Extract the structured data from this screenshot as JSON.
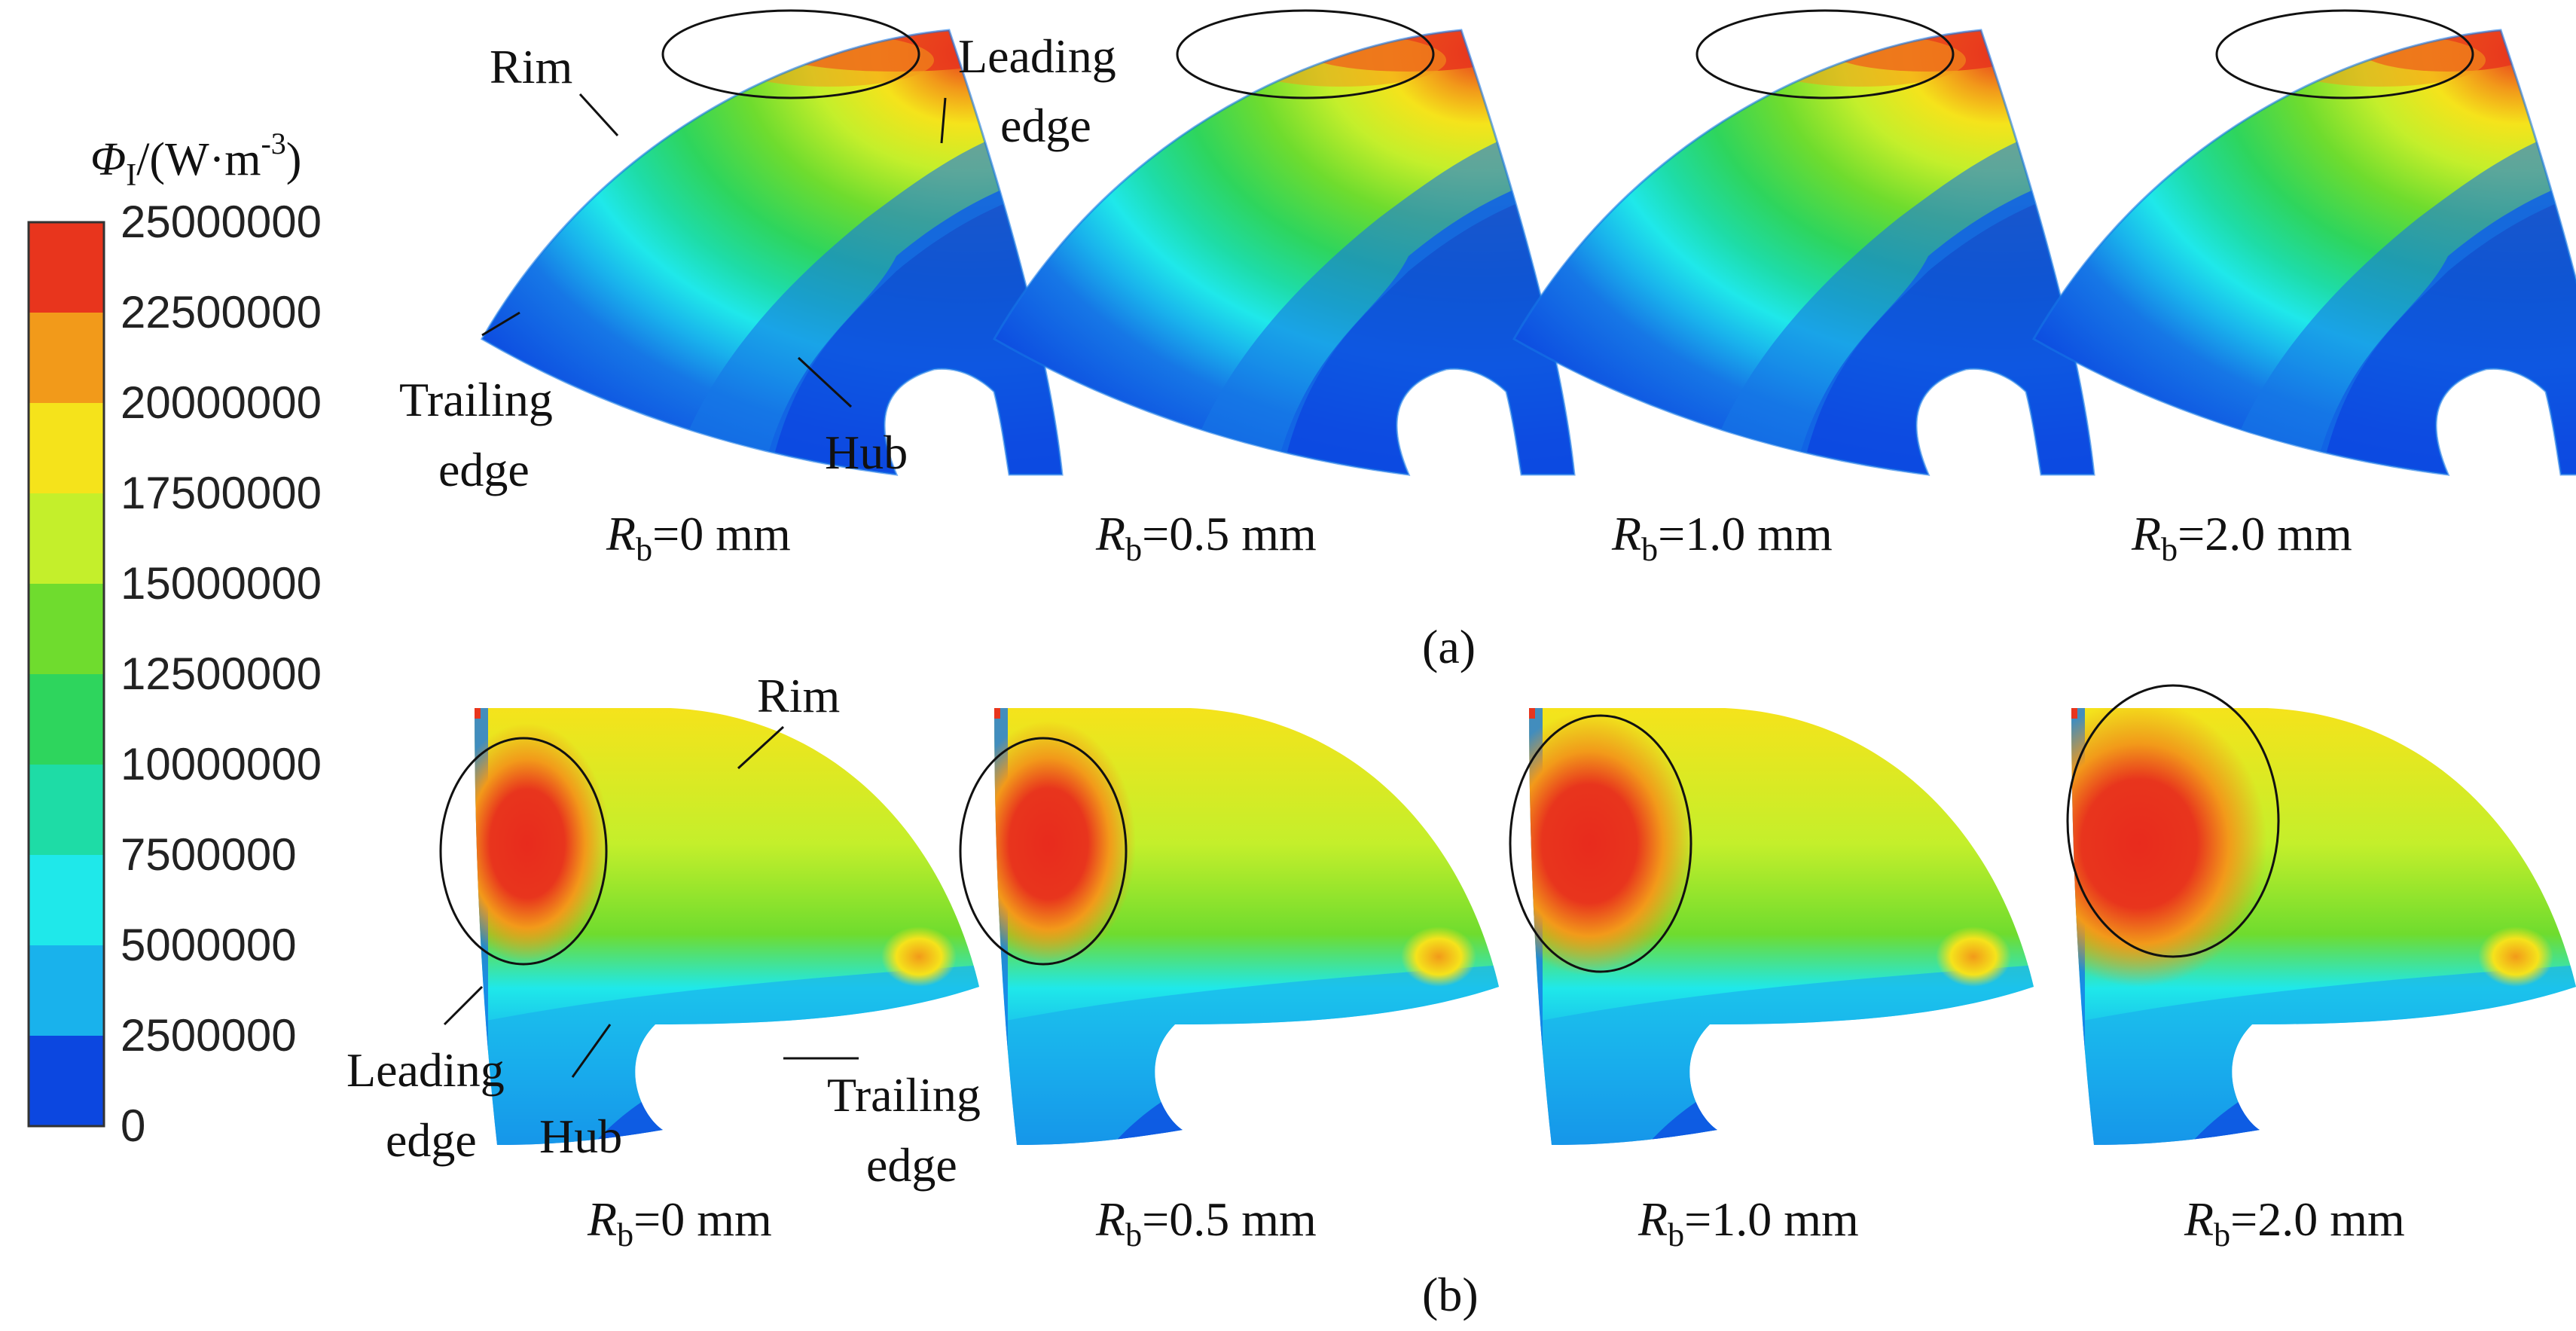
{
  "colorbar": {
    "title_symbol": "Φ",
    "title_subscript": "I",
    "title_units": "/(W·m",
    "title_exponent": "-3",
    "title_close": ")",
    "ticks": [
      "25000000",
      "22500000",
      "20000000",
      "17500000",
      "15000000",
      "12500000",
      "10000000",
      "7500000",
      "5000000",
      "2500000",
      "0"
    ],
    "colors": [
      "#e8351d",
      "#f29a1a",
      "#f5e31b",
      "#c4ef2b",
      "#6fdc2e",
      "#2ed55d",
      "#1edca6",
      "#1fe8ea",
      "#19b2ec",
      "#1677e6",
      "#0c47e0"
    ]
  },
  "panel_a": {
    "label": "(a)",
    "annotations": {
      "rim": "Rim",
      "leading": "Leading",
      "leading2": "edge",
      "trailing": "Trailing",
      "trailing2": "edge",
      "hub": "Hub"
    },
    "captions": [
      {
        "r": "R",
        "sub": "b",
        "val": "=0 mm"
      },
      {
        "r": "R",
        "sub": "b",
        "val": "=0.5 mm"
      },
      {
        "r": "R",
        "sub": "b",
        "val": "=1.0 mm"
      },
      {
        "r": "R",
        "sub": "b",
        "val": "=2.0 mm"
      }
    ]
  },
  "panel_b": {
    "label": "(b)",
    "annotations": {
      "rim": "Rim",
      "leading": "Leading",
      "leading2": "edge",
      "trailing": "Trailing",
      "trailing2": "edge",
      "hub": "Hub"
    },
    "captions": [
      {
        "r": "R",
        "sub": "b",
        "val": "=0 mm"
      },
      {
        "r": "R",
        "sub": "b",
        "val": "=0.5 mm"
      },
      {
        "r": "R",
        "sub": "b",
        "val": "=1.0 mm"
      },
      {
        "r": "R",
        "sub": "b",
        "val": "=2.0 mm"
      }
    ]
  }
}
